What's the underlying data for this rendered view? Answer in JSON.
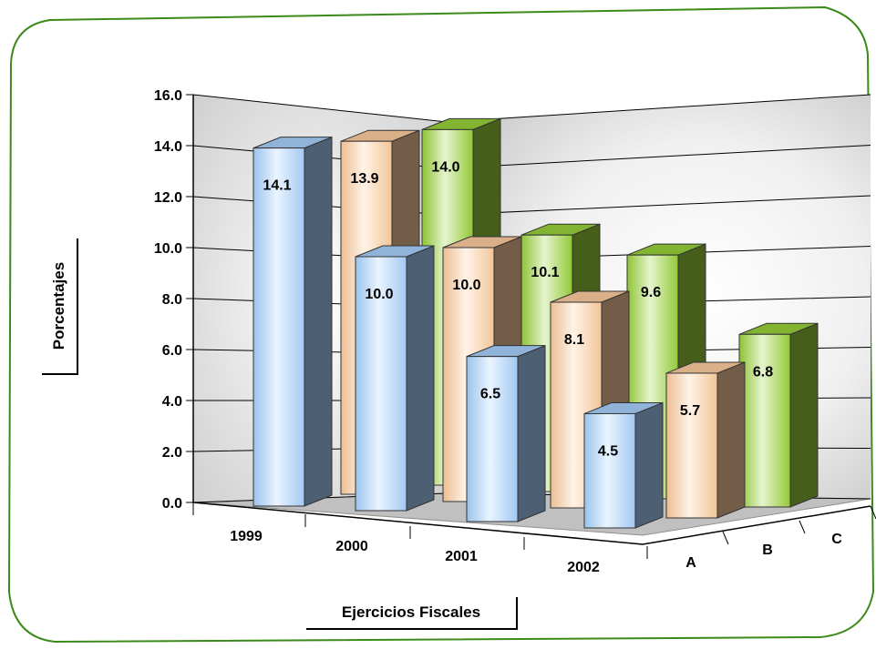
{
  "chart_data": {
    "type": "bar",
    "style": "3d-clustered",
    "categories": [
      "1999",
      "2000",
      "2001",
      "2002"
    ],
    "series": [
      {
        "name": "A",
        "values": [
          14.1,
          10.0,
          6.5,
          4.5
        ],
        "color": "#a9d4ff"
      },
      {
        "name": "B",
        "values": [
          13.9,
          10.0,
          8.1,
          5.7
        ],
        "color": "#ffcfa0"
      },
      {
        "name": "C",
        "values": [
          14.0,
          10.1,
          9.6,
          6.8
        ],
        "color": "#9ad43a"
      }
    ],
    "data_labels": [
      [
        "14.1",
        "10.0",
        "6.5",
        "4.5"
      ],
      [
        "13.9",
        "10.0",
        "8.1",
        "5.7"
      ],
      [
        "14.0",
        "10.1",
        "9.6",
        "6.8"
      ]
    ],
    "yticks": [
      "0.0",
      "2.0",
      "4.0",
      "6.0",
      "8.0",
      "10.0",
      "12.0",
      "14.0",
      "16.0"
    ],
    "ylim": [
      0,
      16
    ],
    "xlabel": "Ejercicios Fiscales",
    "ylabel": "Porcentajes",
    "grid": true,
    "frame_color": "#3a8a1a"
  }
}
